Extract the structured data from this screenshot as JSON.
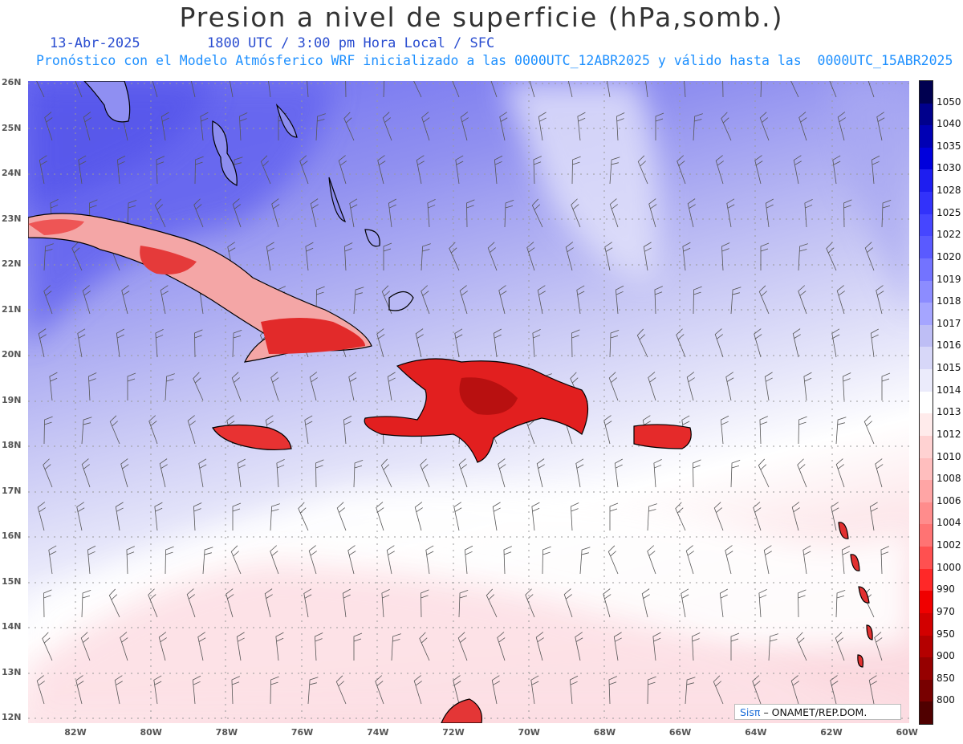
{
  "header": {
    "title": "Presion a nivel de superficie (hPa,somb.)",
    "date": "13-Abr-2025",
    "time_line": "1800 UTC / 3:00 pm Hora Local / SFC",
    "forecast_line": "Pronóstico con el Modelo Atmósferico WRF inicializado a las 0000UTC_12ABR2025 y válido hasta las  0000UTC_15ABR2025"
  },
  "map": {
    "lat_labels": [
      "26N",
      "25N",
      "24N",
      "23N",
      "22N",
      "21N",
      "20N",
      "19N",
      "18N",
      "17N",
      "16N",
      "15N",
      "14N",
      "13N",
      "12N"
    ],
    "lon_labels": [
      "82W",
      "80W",
      "78W",
      "76W",
      "74W",
      "72W",
      "70W",
      "68W",
      "66W",
      "64W",
      "62W",
      "60W"
    ],
    "lat_range": [
      12,
      26
    ],
    "lon_range": [
      -83.2,
      -60
    ],
    "grid": "dotted",
    "field": "sea level pressure (hPa), shaded",
    "wind_barbs": true
  },
  "colorbar": {
    "levels": [
      "1050",
      "1040",
      "1035",
      "1030",
      "1028",
      "1025",
      "1022",
      "1020",
      "1019",
      "1018",
      "1017",
      "1016",
      "1015",
      "1014",
      "1013",
      "1012",
      "1010",
      "1008",
      "1006",
      "1004",
      "1002",
      "1000",
      "990",
      "970",
      "950",
      "900",
      "850",
      "800"
    ],
    "colors": [
      "#000050",
      "#00008c",
      "#0000b4",
      "#0000dc",
      "#1e1ef0",
      "#3232fa",
      "#4646ff",
      "#5a5aff",
      "#7373ff",
      "#8c8cff",
      "#a5a5ff",
      "#bebef5",
      "#d7d7f8",
      "#ebebfb",
      "#ffffff",
      "#ffebeb",
      "#ffd2d2",
      "#ffbebe",
      "#ffa5a5",
      "#ff8c8c",
      "#ff7373",
      "#ff5050",
      "#ff2828",
      "#f00000",
      "#d20000",
      "#b40000",
      "#960000",
      "#780000",
      "#500000"
    ]
  },
  "credit": {
    "brand": "Sisπ",
    "text": "– ONAMET/REP.DOM."
  }
}
